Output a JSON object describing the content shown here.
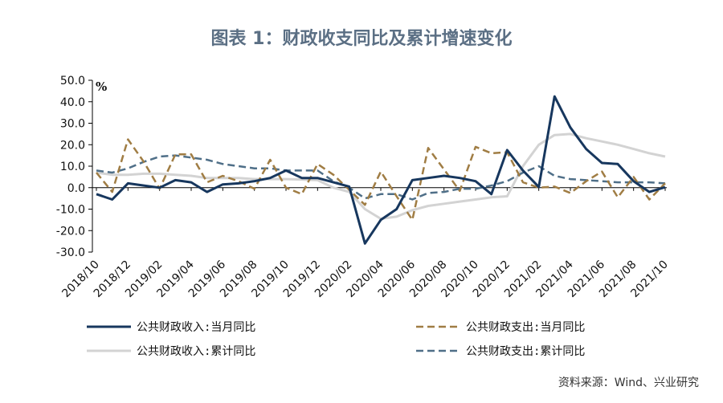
{
  "title": "图表 1：财政收支同比及累计增速变化",
  "source": "资料来源：Wind、兴业研究",
  "chart_data": {
    "type": "line",
    "unit": "%",
    "ylim": [
      -30,
      50
    ],
    "yticks": [
      "50.0",
      "40.0",
      "30.0",
      "20.0",
      "10.0",
      "0.0",
      "-10.0",
      "-20.0",
      "-30.0"
    ],
    "grid": false,
    "legend_position": "bottom",
    "x": [
      "2018/10",
      "2018/11",
      "2018/12",
      "2019/01",
      "2019/02",
      "2019/03",
      "2019/04",
      "2019/05",
      "2019/06",
      "2019/07",
      "2019/08",
      "2019/09",
      "2019/10",
      "2019/11",
      "2019/12",
      "2020/01",
      "2020/02",
      "2020/03",
      "2020/04",
      "2020/05",
      "2020/06",
      "2020/07",
      "2020/08",
      "2020/09",
      "2020/10",
      "2020/11",
      "2020/12",
      "2021/01",
      "2021/02",
      "2021/03",
      "2021/04",
      "2021/05",
      "2021/06",
      "2021/07",
      "2021/08",
      "2021/09",
      "2021/10"
    ],
    "xtick_labels": [
      "2018/10",
      "2018/12",
      "2019/02",
      "2019/04",
      "2019/06",
      "2019/08",
      "2019/10",
      "2019/12",
      "2020/02",
      "2020/04",
      "2020/06",
      "2020/08",
      "2020/10",
      "2020/12",
      "2021/02",
      "2021/04",
      "2021/06",
      "2021/08",
      "2021/10"
    ],
    "series": [
      {
        "name": "公共财政收入:当月同比",
        "color": "#17375e",
        "dash": "solid",
        "values": [
          -3,
          -5.5,
          2,
          1,
          0,
          3.5,
          2.5,
          -2,
          1.5,
          2,
          3,
          4.5,
          8,
          4.5,
          4.5,
          2.5,
          0.5,
          -26,
          -15,
          -10,
          3.5,
          4.5,
          5.5,
          4.5,
          3,
          -3,
          17.5,
          8,
          0.3,
          42.5,
          28,
          18,
          11.5,
          11,
          3,
          -2,
          0.2
        ]
      },
      {
        "name": "公共财政支出:当月同比",
        "color": "#a07d44",
        "dash": "dash",
        "values": [
          7,
          -2,
          22.5,
          12,
          -0.5,
          15.5,
          15.5,
          2.5,
          5.5,
          3,
          -0.5,
          13,
          0,
          -3,
          11,
          6,
          -1,
          -8,
          7.5,
          -4,
          -15,
          18.5,
          8.5,
          -1.5,
          19,
          16,
          16.5,
          2.5,
          0,
          0.5,
          -2.5,
          3,
          7.5,
          -4.5,
          5,
          -5.5,
          2
        ]
      },
      {
        "name": "公共财政收入:累计同比",
        "color": "#d3d3d3",
        "dash": "solid",
        "values": [
          7,
          6,
          6,
          6.5,
          6.5,
          6,
          5.5,
          4.5,
          4.5,
          4.5,
          4,
          4,
          4,
          3.8,
          3.5,
          0,
          -2,
          -10,
          -14.5,
          -13.5,
          -10.5,
          -8.5,
          -7.5,
          -6.5,
          -5.5,
          -4.5,
          -4,
          10,
          20,
          24.5,
          25,
          23,
          21.5,
          20,
          18,
          16,
          14.5
        ]
      },
      {
        "name": "公共财政支出:累计同比",
        "color": "#4f6f88",
        "dash": "dash",
        "values": [
          8,
          7,
          9,
          12,
          14.5,
          15,
          14,
          13,
          11,
          10,
          9,
          9,
          8,
          8,
          8,
          3,
          0,
          -5,
          -3,
          -3,
          -5.5,
          -2.5,
          -2,
          -0.5,
          -0.5,
          1,
          3,
          7,
          10,
          5.5,
          4,
          3.5,
          3,
          2.5,
          2.5,
          2.5,
          2
        ]
      }
    ]
  }
}
